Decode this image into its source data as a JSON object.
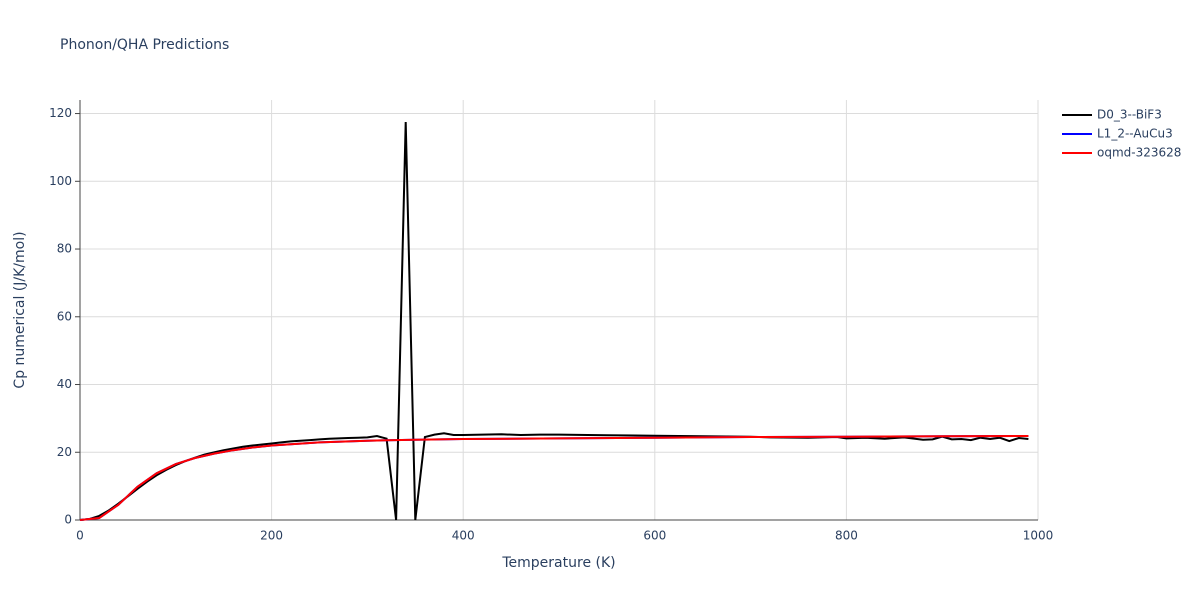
{
  "chart_data": {
    "type": "line",
    "title": "Phonon/QHA Predictions",
    "x_label": "Temperature (K)",
    "y_label": "Cp numerical (J/K/mol)",
    "xlim": [
      0,
      1000
    ],
    "xticks": [
      0,
      200,
      400,
      600,
      800,
      1000
    ],
    "ylim": [
      0,
      124
    ],
    "yticks": [
      0,
      20,
      40,
      60,
      80,
      100,
      120
    ],
    "grid": true,
    "legend": "right",
    "series": [
      {
        "name": "D0_3--BiF3",
        "color": "#000000",
        "x": [
          0,
          10,
          20,
          30,
          40,
          50,
          60,
          70,
          80,
          90,
          100,
          110,
          120,
          130,
          140,
          150,
          160,
          170,
          180,
          190,
          200,
          210,
          220,
          230,
          240,
          250,
          260,
          270,
          280,
          290,
          300,
          310,
          320,
          330,
          340,
          350,
          360,
          370,
          380,
          390,
          400,
          420,
          440,
          460,
          480,
          500,
          550,
          600,
          650,
          700,
          720,
          760,
          790,
          800,
          820,
          840,
          860,
          880,
          890,
          900,
          910,
          920,
          930,
          940,
          950,
          960,
          970,
          980,
          990
        ],
        "values": [
          0,
          0.3,
          1.2,
          2.8,
          4.8,
          7,
          9.2,
          11.3,
          13.2,
          14.8,
          16.2,
          17.4,
          18.4,
          19.3,
          20,
          20.6,
          21.1,
          21.6,
          22,
          22.3,
          22.6,
          22.9,
          23.2,
          23.4,
          23.6,
          23.8,
          24,
          24.1,
          24.2,
          24.3,
          24.4,
          24.8,
          24,
          0,
          117.5,
          0,
          24.5,
          25.2,
          25.6,
          25.1,
          25.1,
          25.2,
          25.3,
          25.1,
          25.2,
          25.2,
          25,
          24.9,
          24.7,
          24.6,
          24.4,
          24.3,
          24.5,
          24.1,
          24.3,
          24,
          24.4,
          23.7,
          23.8,
          24.6,
          23.8,
          23.9,
          23.6,
          24.3,
          23.9,
          24.3,
          23.3,
          24.2,
          23.9
        ]
      },
      {
        "name": "L1_2--AuCu3",
        "color": "#0000ff",
        "x": [
          0,
          20,
          40,
          60,
          80,
          100,
          120,
          140,
          160,
          180,
          200,
          250,
          300,
          350,
          400,
          500,
          600,
          700,
          800,
          900,
          990
        ],
        "values": [
          0,
          0.6,
          4.5,
          9.8,
          13.8,
          16.5,
          18.3,
          19.6,
          20.6,
          21.4,
          22,
          22.9,
          23.4,
          23.7,
          23.9,
          24.1,
          24.3,
          24.5,
          24.6,
          24.7,
          24.8
        ]
      },
      {
        "name": "oqmd-323628",
        "color": "#ff0000",
        "x": [
          0,
          20,
          40,
          60,
          80,
          100,
          120,
          140,
          160,
          180,
          200,
          250,
          300,
          350,
          400,
          500,
          600,
          700,
          800,
          900,
          990
        ],
        "values": [
          0,
          0.6,
          4.5,
          9.8,
          13.8,
          16.5,
          18.3,
          19.6,
          20.6,
          21.4,
          22,
          22.9,
          23.4,
          23.7,
          23.9,
          24.1,
          24.3,
          24.5,
          24.6,
          24.7,
          24.8
        ]
      }
    ]
  }
}
